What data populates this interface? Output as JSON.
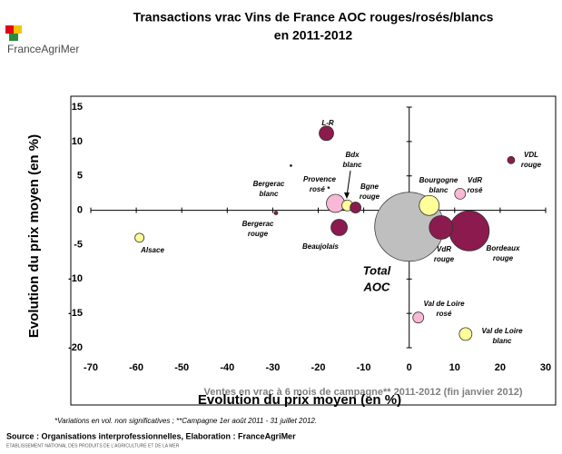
{
  "logo": "FranceAgriMer",
  "chart_data": {
    "type": "bubble",
    "title": [
      "Transactions vrac Vins de France AOC rouges/rosés/blancs",
      "en 2011-2012"
    ],
    "x_label": "Ventes en vrac à 6 mois de campagne** 2011-2012 (fin janvier 2012)",
    "x_label_2": "Evolution du prix moyen (en %)",
    "y_label": "Evolution du prix moyen (en %)",
    "xlim": [
      -70,
      30
    ],
    "ylim": [
      -20,
      15
    ],
    "xticks": [
      -70,
      -60,
      -50,
      -40,
      -30,
      -20,
      -10,
      0,
      10,
      20,
      30
    ],
    "yticks": [
      15,
      10,
      5,
      0,
      -5,
      -10,
      -15,
      -20
    ],
    "labels": [
      [
        "Total",
        "AOC"
      ],
      [
        "Bordeaux",
        "rouge"
      ],
      [
        "VdR",
        "rouge"
      ],
      [
        "Bourgogne",
        "blanc"
      ],
      [
        "Provence",
        "rosé *"
      ],
      [
        "Beaujolais"
      ],
      [
        "L-R"
      ],
      [
        "Val de Loire",
        "blanc"
      ],
      [
        "Bdx",
        "blanc"
      ],
      [
        "Bgne",
        "rouge"
      ],
      [
        "VdR",
        "rosé"
      ],
      [
        "Val de Loire",
        "rosé"
      ],
      [
        "Alsace"
      ],
      [
        "VDL",
        "rouge"
      ],
      [
        "Bergerac",
        "rouge"
      ],
      [
        "Bergerac",
        "blanc"
      ]
    ],
    "x": [
      0,
      13.2,
      7,
      4.4,
      -16.2,
      -15.4,
      -18.2,
      12.4,
      -13.6,
      -11.8,
      11.2,
      2,
      -59.3,
      22.4,
      -29.3,
      -26
    ],
    "values": [
      -2.4,
      -3,
      -2.5,
      0.7,
      1,
      -2.5,
      11.2,
      -18,
      0.7,
      0.4,
      2.4,
      -15.6,
      -4,
      7.3,
      -0.4,
      6.5
    ],
    "sizes": [
      1444,
      484,
      169,
      121,
      100,
      81,
      64,
      49,
      36,
      36,
      36,
      36,
      25,
      16,
      4,
      1
    ],
    "colors": [
      "#bfbfbf",
      "#8b1a4f",
      "#8b1a4f",
      "#ffff99",
      "#f9b8d6",
      "#8b1a4f",
      "#8b1a4f",
      "#ffff99",
      "#ffff99",
      "#8b1a4f",
      "#f9b8d6",
      "#f9b8d6",
      "#ffff99",
      "#8b1a4f",
      "#8b1a4f",
      "#000000"
    ]
  },
  "footnote": "*Variations en vol. non significatives ; **Campagne 1er août 2011 - 31  juillet 2012.",
  "source": "Source : Organisations interprofessionnelles, Elaboration : FranceAgriMer",
  "org": "ETABLISSEMENT NATIONAL DES PRODUITS DE L'AGRICULTURE ET DE LA MER"
}
